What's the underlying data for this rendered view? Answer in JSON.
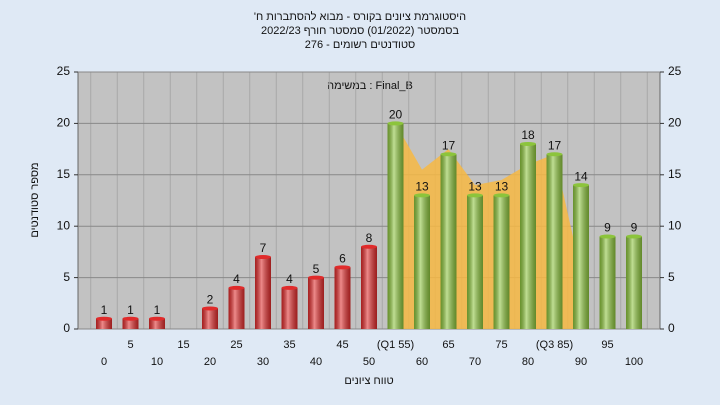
{
  "chart_data": {
    "type": "bar",
    "title": [
      "היסטוגרמת ציונים בקורס - מבוא להסתברות ח'",
      "בסמסטר (01/2022) סמסטר חורף 2022/23",
      "סטודנטים רשומים - 276"
    ],
    "annotation": "במשימה : Final_B",
    "ylabel": "מספר סטודנטים",
    "xlabel": "טווח ציונים",
    "categories": [
      "0",
      "5",
      "10",
      "15",
      "20",
      "25",
      "30",
      "35",
      "40",
      "45",
      "50",
      "(Q1 55)",
      "60",
      "65",
      "70",
      "75",
      "80",
      "(Q3 85)",
      "90",
      "95",
      "100"
    ],
    "values": [
      1,
      1,
      1,
      null,
      2,
      4,
      7,
      4,
      5,
      6,
      8,
      20,
      13,
      17,
      13,
      13,
      18,
      17,
      14,
      9,
      9
    ],
    "colors": [
      "#e02b2b",
      "#e02b2b",
      "#e02b2b",
      "#e02b2b",
      "#e02b2b",
      "#e02b2b",
      "#e02b2b",
      "#e02b2b",
      "#e02b2b",
      "#e02b2b",
      "#e02b2b",
      "#8cc43c",
      "#8cc43c",
      "#8cc43c",
      "#8cc43c",
      "#8cc43c",
      "#8cc43c",
      "#8cc43c",
      "#8cc43c",
      "#8cc43c",
      "#8cc43c"
    ],
    "shade": {
      "color": "#f7b843",
      "values": [
        null,
        null,
        null,
        null,
        null,
        null,
        null,
        null,
        null,
        null,
        null,
        20,
        15.5,
        17.5,
        14,
        14.5,
        16,
        17,
        5.5,
        null,
        null
      ]
    },
    "ylim": [
      0,
      25
    ],
    "yticks": [
      0,
      5,
      10,
      15,
      20,
      25
    ],
    "grid": true
  }
}
